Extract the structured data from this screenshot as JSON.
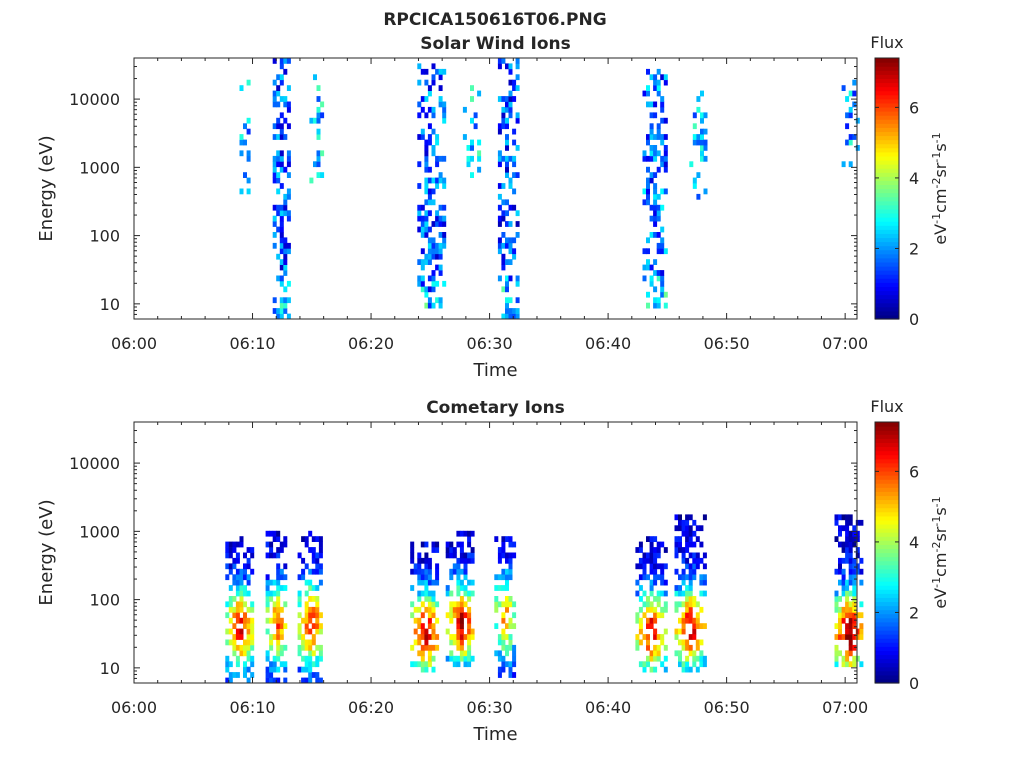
{
  "figure_title": "RPCICA150616T06.PNG",
  "chart_data": [
    {
      "type": "heatmap",
      "title": "Solar Wind Ions",
      "xlabel": "Time",
      "ylabel": "Energy (eV)",
      "x_ticks": [
        "06:00",
        "06:10",
        "06:20",
        "06:30",
        "06:40",
        "06:50",
        "07:00"
      ],
      "xlim": [
        "06:00",
        "07:01"
      ],
      "y_scale": "log",
      "y_ticks": [
        10,
        100,
        1000,
        10000
      ],
      "y_tick_labels": [
        "10",
        "100",
        "1000",
        "10000"
      ],
      "ylim": [
        6,
        40000
      ],
      "colorbar": {
        "label": "Flux",
        "unit": "eV-1cm-2sr-1s-1",
        "unit_parts": [
          "eV",
          "-1",
          "cm",
          "-2",
          "sr",
          "-1",
          "s",
          "-1"
        ],
        "ticks": [
          0,
          2,
          4,
          6
        ],
        "range": [
          0,
          7.4
        ],
        "colormap": "jet"
      },
      "bursts": [
        {
          "t": 9.3,
          "width": 0.8,
          "e_lo": 400,
          "e_hi": 20000,
          "flux": 1.9,
          "fill": 0.25
        },
        {
          "t": 12.4,
          "width": 1.4,
          "e_lo": 6,
          "e_hi": 40000,
          "flux": 1.4,
          "fill": 0.55
        },
        {
          "t": 15.4,
          "width": 1.2,
          "e_lo": 500,
          "e_hi": 20000,
          "flux": 2.2,
          "fill": 0.3
        },
        {
          "t": 25.0,
          "width": 2.2,
          "e_lo": 8,
          "e_hi": 30000,
          "flux": 1.5,
          "fill": 0.5
        },
        {
          "t": 28.5,
          "width": 1.5,
          "e_lo": 500,
          "e_hi": 15000,
          "flux": 2.3,
          "fill": 0.3
        },
        {
          "t": 31.5,
          "width": 1.6,
          "e_lo": 6,
          "e_hi": 40000,
          "flux": 1.3,
          "fill": 0.55
        },
        {
          "t": 43.8,
          "width": 1.8,
          "e_lo": 8,
          "e_hi": 25000,
          "flux": 1.6,
          "fill": 0.5
        },
        {
          "t": 47.5,
          "width": 1.3,
          "e_lo": 300,
          "e_hi": 15000,
          "flux": 2.3,
          "fill": 0.3
        },
        {
          "t": 60.3,
          "width": 1.2,
          "e_lo": 800,
          "e_hi": 20000,
          "flux": 2.0,
          "fill": 0.25
        }
      ]
    },
    {
      "type": "heatmap",
      "title": "Cometary Ions",
      "xlabel": "Time",
      "ylabel": "Energy (eV)",
      "x_ticks": [
        "06:00",
        "06:10",
        "06:20",
        "06:30",
        "06:40",
        "06:50",
        "07:00"
      ],
      "xlim": [
        "06:00",
        "07:01"
      ],
      "y_scale": "log",
      "y_ticks": [
        10,
        100,
        1000,
        10000
      ],
      "y_tick_labels": [
        "10",
        "100",
        "1000",
        "10000"
      ],
      "ylim": [
        6,
        40000
      ],
      "colorbar": {
        "label": "Flux",
        "unit": "eV-1cm-2sr-1s-1",
        "unit_parts": [
          "eV",
          "-1",
          "cm",
          "-2",
          "sr",
          "-1",
          "s",
          "-1"
        ],
        "ticks": [
          0,
          2,
          4,
          6
        ],
        "range": [
          0,
          7.4
        ],
        "colormap": "jet"
      },
      "bursts": [
        {
          "t": 8.8,
          "width": 2.2,
          "e_lo": 6,
          "e_hi": 800,
          "flux": 6.2,
          "fill": 0.75,
          "peak_e": 35
        },
        {
          "t": 12.0,
          "width": 1.8,
          "e_lo": 6,
          "e_hi": 1000,
          "flux": 5.5,
          "fill": 0.7,
          "peak_e": 40
        },
        {
          "t": 14.8,
          "width": 2.0,
          "e_lo": 6,
          "e_hi": 1000,
          "flux": 6.0,
          "fill": 0.7,
          "peak_e": 40
        },
        {
          "t": 24.5,
          "width": 2.4,
          "e_lo": 8,
          "e_hi": 600,
          "flux": 6.5,
          "fill": 0.75,
          "peak_e": 30
        },
        {
          "t": 27.5,
          "width": 2.4,
          "e_lo": 10,
          "e_hi": 1000,
          "flux": 6.3,
          "fill": 0.75,
          "peak_e": 40
        },
        {
          "t": 31.2,
          "width": 1.6,
          "e_lo": 6,
          "e_hi": 800,
          "flux": 5.0,
          "fill": 0.65,
          "peak_e": 50
        },
        {
          "t": 43.5,
          "width": 2.4,
          "e_lo": 8,
          "e_hi": 800,
          "flux": 6.2,
          "fill": 0.7,
          "peak_e": 30
        },
        {
          "t": 46.8,
          "width": 2.4,
          "e_lo": 8,
          "e_hi": 1500,
          "flux": 6.5,
          "fill": 0.75,
          "peak_e": 35
        },
        {
          "t": 60.2,
          "width": 2.2,
          "e_lo": 10,
          "e_hi": 1500,
          "flux": 7.2,
          "fill": 0.8,
          "peak_e": 30
        }
      ]
    }
  ]
}
